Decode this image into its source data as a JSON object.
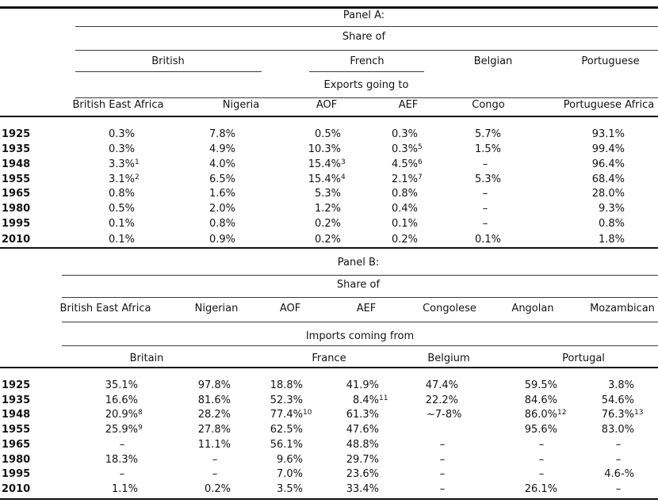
{
  "table": {
    "panels": [
      {
        "title": "Panel A:",
        "share_label": "Share of",
        "flow_label": "Exports going to",
        "groups": [
          "British",
          "French",
          "Belgian",
          "Portuguese"
        ],
        "columns": [
          "British East Africa",
          "Nigeria",
          "AOF",
          "AEF",
          "Congo",
          "Portuguese Africa"
        ],
        "rows": [
          {
            "year": "1925",
            "cells": [
              "0.3%",
              "7.8%",
              "0.5%",
              "0.3%",
              "5.7%",
              "93.1%"
            ]
          },
          {
            "year": "1935",
            "cells": [
              "0.3%",
              "4.9%",
              "10.3%",
              "0.3%^5",
              "1.5%",
              "99.4%"
            ]
          },
          {
            "year": "1948",
            "cells": [
              "3.3%^1",
              "4.0%",
              "15.4%^3",
              "4.5%^6",
              "–",
              "96.4%"
            ]
          },
          {
            "year": "1955",
            "cells": [
              "3.1%^2",
              "6.5%",
              "15.4%^4",
              "2.1%^7",
              "5.3%",
              "68.4%"
            ]
          },
          {
            "year": "1965",
            "cells": [
              "0.8%",
              "1.6%",
              "5.3%",
              "0.8%",
              "–",
              "28.0%"
            ]
          },
          {
            "year": "1980",
            "cells": [
              "0.5%",
              "2.0%",
              "1.2%",
              "0.4%",
              "–",
              "9.3%"
            ]
          },
          {
            "year": "1995",
            "cells": [
              "0.1%",
              "0.8%",
              "0.2%",
              "0.1%",
              "–",
              "0.8%"
            ]
          },
          {
            "year": "2010",
            "cells": [
              "0.1%",
              "0.9%",
              "0.2%",
              "0.2%",
              "0.1%",
              "1.8%"
            ]
          }
        ]
      },
      {
        "title": "Panel B:",
        "share_label": "Share of",
        "flow_label": "Imports coming from",
        "groups": [
          "Britain",
          "France",
          "Belgium",
          "Portugal"
        ],
        "columns": [
          "British East Africa",
          "Nigerian",
          "AOF",
          "AEF",
          "Congolese",
          "Angolan",
          "Mozambican"
        ],
        "rows": [
          {
            "year": "1925",
            "cells": [
              "35.1%",
              "97.8%",
              "18.8%",
              "41.9%",
              "47.4%",
              "59.5%",
              "3.8%"
            ]
          },
          {
            "year": "1935",
            "cells": [
              "16.6%",
              "81.6%",
              "52.3%",
              "8.4%^11",
              "22.2%",
              "84.6%",
              "54.6%"
            ]
          },
          {
            "year": "1948",
            "cells": [
              "20.9%^8",
              "28.2%",
              "77.4%^10",
              "61.3%",
              "~7-8%",
              "86.0%^12",
              "76.3%^13"
            ]
          },
          {
            "year": "1955",
            "cells": [
              "25.9%^9",
              "27.8%",
              "62.5%",
              "47.6%",
              "",
              "95.6%",
              "83.0%"
            ]
          },
          {
            "year": "1965",
            "cells": [
              "–",
              "11.1%",
              "56.1%",
              "48.8%",
              "–",
              "–",
              "–"
            ]
          },
          {
            "year": "1980",
            "cells": [
              "18.3%",
              "–",
              "9.6%",
              "29.7%",
              "–",
              "–",
              "–"
            ]
          },
          {
            "year": "1995",
            "cells": [
              "–",
              "–",
              "7.0%",
              "23.6%",
              "–",
              "–",
              "4.6-%"
            ]
          },
          {
            "year": "2010",
            "cells": [
              "1.1%",
              "0.2%",
              "3.5%",
              "33.4%",
              "–",
              "26.1%",
              "–"
            ]
          }
        ]
      }
    ]
  }
}
